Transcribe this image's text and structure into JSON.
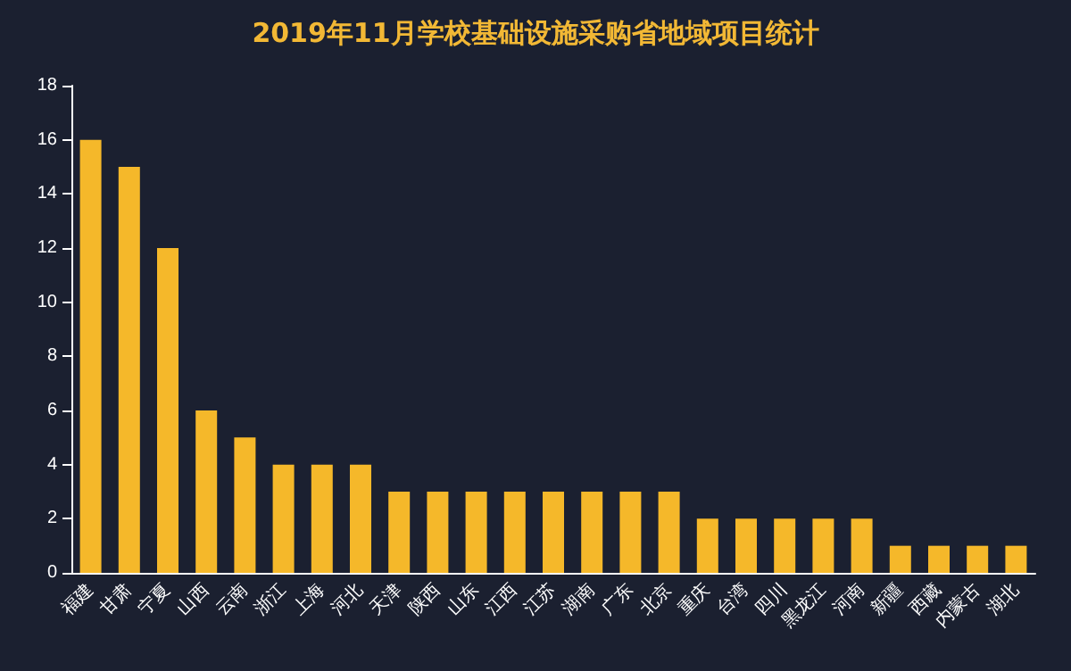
{
  "chart_data": {
    "type": "bar",
    "title": "2019年11月学校基础设施采购省地域项目统计",
    "categories": [
      "福建",
      "甘肃",
      "宁夏",
      "山西",
      "云南",
      "浙江",
      "上海",
      "河北",
      "天津",
      "陕西",
      "山东",
      "江西",
      "江苏",
      "湖南",
      "广东",
      "北京",
      "重庆",
      "台湾",
      "四川",
      "黑龙江",
      "河南",
      "新疆",
      "西藏",
      "内蒙古",
      "湖北"
    ],
    "values": [
      16,
      15,
      12,
      6,
      5,
      4,
      4,
      4,
      3,
      3,
      3,
      3,
      3,
      3,
      3,
      3,
      2,
      2,
      2,
      2,
      2,
      1,
      1,
      1,
      1
    ],
    "color": "#f5b82a",
    "ylim": [
      0,
      18
    ],
    "yticks": [
      0,
      2,
      4,
      6,
      8,
      10,
      12,
      14,
      16,
      18
    ],
    "grid": false
  }
}
